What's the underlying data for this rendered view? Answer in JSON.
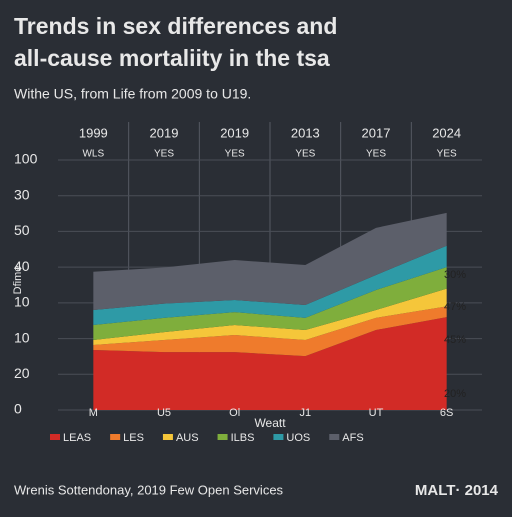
{
  "chart_data": {
    "type": "stacked_area",
    "title": [
      "Trends in sex differences and",
      "all-cause mortaliity in the tsa"
    ],
    "subtitle": "Withe US, from Life from 2009 to U19.",
    "column_headers": [
      "1999",
      "2019",
      "2019",
      "2013",
      "2017",
      "2024"
    ],
    "column_subheaders": [
      "WLS",
      "YES",
      "YES",
      "YES",
      "YES",
      "YES"
    ],
    "y_label": "Dfime",
    "x_label": "Weatt",
    "categories": [
      "M",
      "U5",
      "Ol",
      "J1",
      "UT",
      "6S"
    ],
    "ylim": [
      0,
      7
    ],
    "yticks": [
      {
        "value": 7,
        "label": "100"
      },
      {
        "value": 6,
        "label": "30"
      },
      {
        "value": 5,
        "label": "50"
      },
      {
        "value": 4,
        "label": "40"
      },
      {
        "value": 3,
        "label": "10"
      },
      {
        "value": 2,
        "label": "10"
      },
      {
        "value": 1,
        "label": "20"
      },
      0
    ],
    "grid": true,
    "series": [
      {
        "name": "LEAS",
        "color": "#d22b26",
        "values": [
          1.68,
          1.62,
          1.62,
          1.51,
          2.24,
          2.6
        ]
      },
      {
        "name": "LES",
        "color": "#ef7b2c",
        "values": [
          0.14,
          0.34,
          0.48,
          0.45,
          0.34,
          0.3
        ]
      },
      {
        "name": "AUS",
        "color": "#f5c63a",
        "values": [
          0.14,
          0.22,
          0.28,
          0.28,
          0.22,
          0.5
        ]
      },
      {
        "name": "ILBS",
        "color": "#7fae3c",
        "values": [
          0.42,
          0.4,
          0.36,
          0.34,
          0.56,
          0.6
        ]
      },
      {
        "name": "UOS",
        "color": "#2e9aa6",
        "values": [
          0.42,
          0.4,
          0.34,
          0.36,
          0.42,
          0.6
        ]
      },
      {
        "name": "AFS",
        "color": "#5c5f6a",
        "values": [
          1.07,
          1.01,
          1.12,
          1.12,
          1.32,
          0.92
        ]
      }
    ],
    "annotations": [
      "30%",
      "47%",
      "45%",
      "20%"
    ],
    "footer": "Wrenis Sottendonay, 2019 Few Open Services",
    "brand": "MALT· 2014"
  }
}
